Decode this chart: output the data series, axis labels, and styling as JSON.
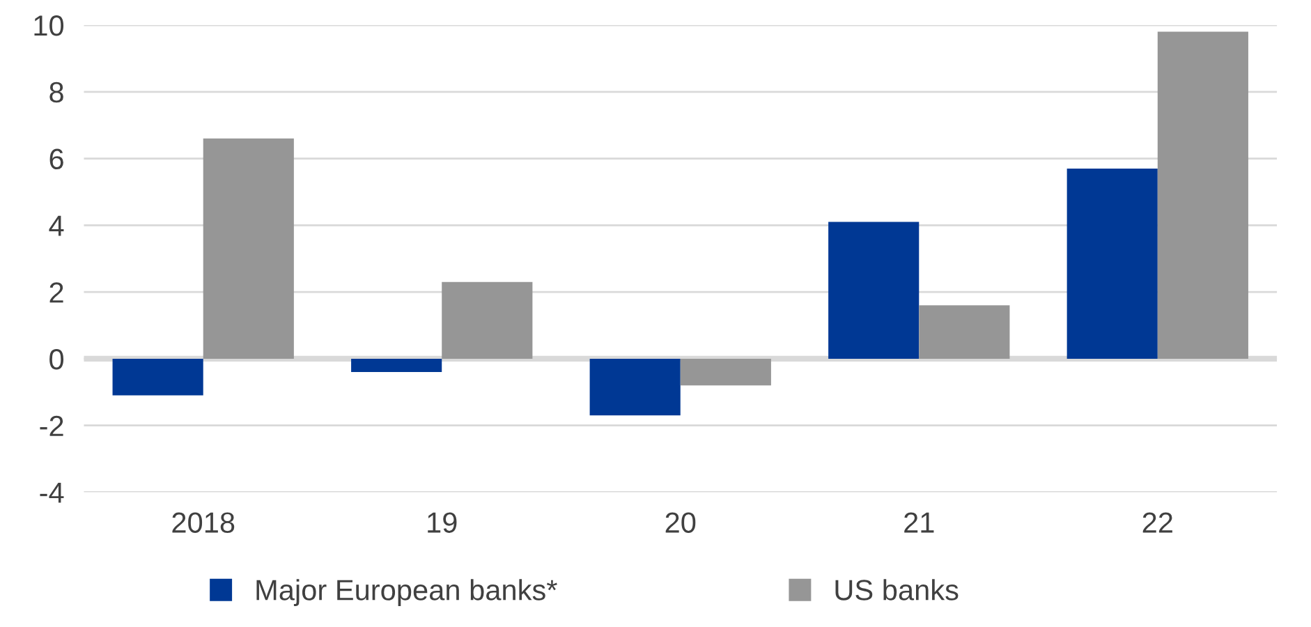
{
  "chart_data": {
    "type": "bar",
    "categories": [
      "2018",
      "19",
      "20",
      "21",
      "22"
    ],
    "series": [
      {
        "name": "Major European banks*",
        "color": "#003894",
        "values": [
          -1.1,
          -0.4,
          -1.7,
          4.1,
          5.7
        ]
      },
      {
        "name": "US banks",
        "color": "#969696",
        "values": [
          6.6,
          2.3,
          -0.8,
          1.6,
          9.8
        ]
      }
    ],
    "ylim": [
      -4,
      10
    ],
    "yticks": [
      -4,
      -2,
      0,
      2,
      4,
      6,
      8,
      10
    ],
    "grid": "y",
    "legend": "bottom"
  }
}
